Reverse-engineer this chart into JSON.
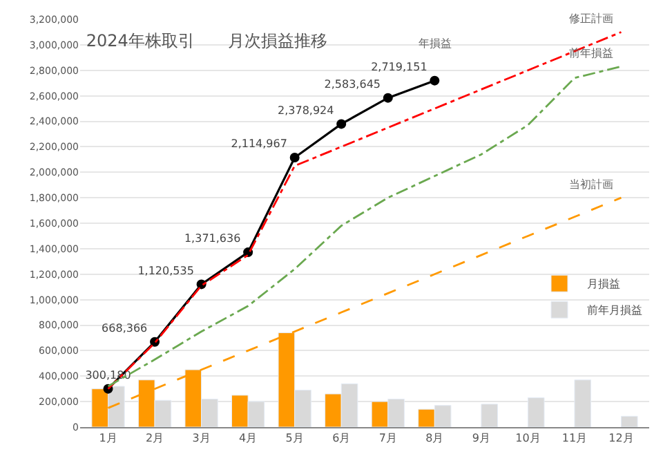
{
  "chart_data": {
    "type": "bar",
    "title": "2024年株取引　　月次損益推移",
    "categories": [
      "1月",
      "2月",
      "3月",
      "4月",
      "5月",
      "6月",
      "7月",
      "8月",
      "9月",
      "10月",
      "11月",
      "12月"
    ],
    "series": [
      {
        "name": "月損益",
        "color": "#ff9900",
        "values": [
          300000,
          370000,
          450000,
          250000,
          740000,
          260000,
          200000,
          140000,
          null,
          null,
          null,
          null
        ]
      },
      {
        "name": "前年月損益",
        "color": "#d9d9d9",
        "values": [
          320000,
          210000,
          220000,
          200000,
          290000,
          340000,
          220000,
          170000,
          180000,
          230000,
          370000,
          85000
        ]
      },
      {
        "name": "年損益",
        "type": "line",
        "color": "#000000",
        "marker": "circle",
        "line_style": "solid",
        "values": [
          300180,
          668366,
          1120535,
          1371636,
          2114967,
          2378924,
          2583645,
          2719151,
          null,
          null,
          null,
          null
        ],
        "value_labels": [
          "300,180",
          "668,366",
          "1,120,535",
          "1,371,636",
          "2,114,967",
          "2,378,924",
          "2,583,645",
          "2,719,151",
          null,
          null,
          null,
          null
        ]
      },
      {
        "name": "修正計画",
        "type": "line",
        "color": "#ff0000",
        "marker": "none",
        "line_style": "dashdot",
        "values": [
          300000,
          660000,
          1110000,
          1350000,
          2050000,
          2200000,
          2350000,
          2500000,
          2650000,
          2800000,
          2950000,
          3100000
        ]
      },
      {
        "name": "前年損益",
        "type": "line",
        "color": "#6aa84f",
        "marker": "none",
        "line_style": "dashdot",
        "values": [
          320000,
          530000,
          750000,
          950000,
          1240000,
          1580000,
          1800000,
          1970000,
          2140000,
          2370000,
          2740000,
          2830000
        ]
      },
      {
        "name": "当初計画",
        "type": "line",
        "color": "#ff9900",
        "marker": "none",
        "line_style": "dashed",
        "values": [
          150000,
          300000,
          450000,
          600000,
          750000,
          900000,
          1050000,
          1200000,
          1350000,
          1500000,
          1650000,
          1800000
        ]
      }
    ],
    "ylim": [
      0,
      3200000
    ],
    "yticks": [
      {
        "value": 0,
        "label": "0"
      },
      {
        "value": 200000,
        "label": "200,000"
      },
      {
        "value": 400000,
        "label": "400,000"
      },
      {
        "value": 600000,
        "label": "600,000"
      },
      {
        "value": 800000,
        "label": "800,000"
      },
      {
        "value": 1000000,
        "label": "1,000,000"
      },
      {
        "value": 1200000,
        "label": "1,200,000"
      },
      {
        "value": 1400000,
        "label": "1,400,000"
      },
      {
        "value": 1600000,
        "label": "1,600,000"
      },
      {
        "value": 1800000,
        "label": "1,800,000"
      },
      {
        "value": 2000000,
        "label": "2,000,000"
      },
      {
        "value": 2200000,
        "label": "2,200,000"
      },
      {
        "value": 2400000,
        "label": "2,400,000"
      },
      {
        "value": 2600000,
        "label": "2,600,000"
      },
      {
        "value": 2800000,
        "label": "2,800,000"
      },
      {
        "value": 3000000,
        "label": "3,000,000"
      },
      {
        "value": 3200000,
        "label": "3,200,000"
      }
    ],
    "grid": "y",
    "legend": "right"
  }
}
